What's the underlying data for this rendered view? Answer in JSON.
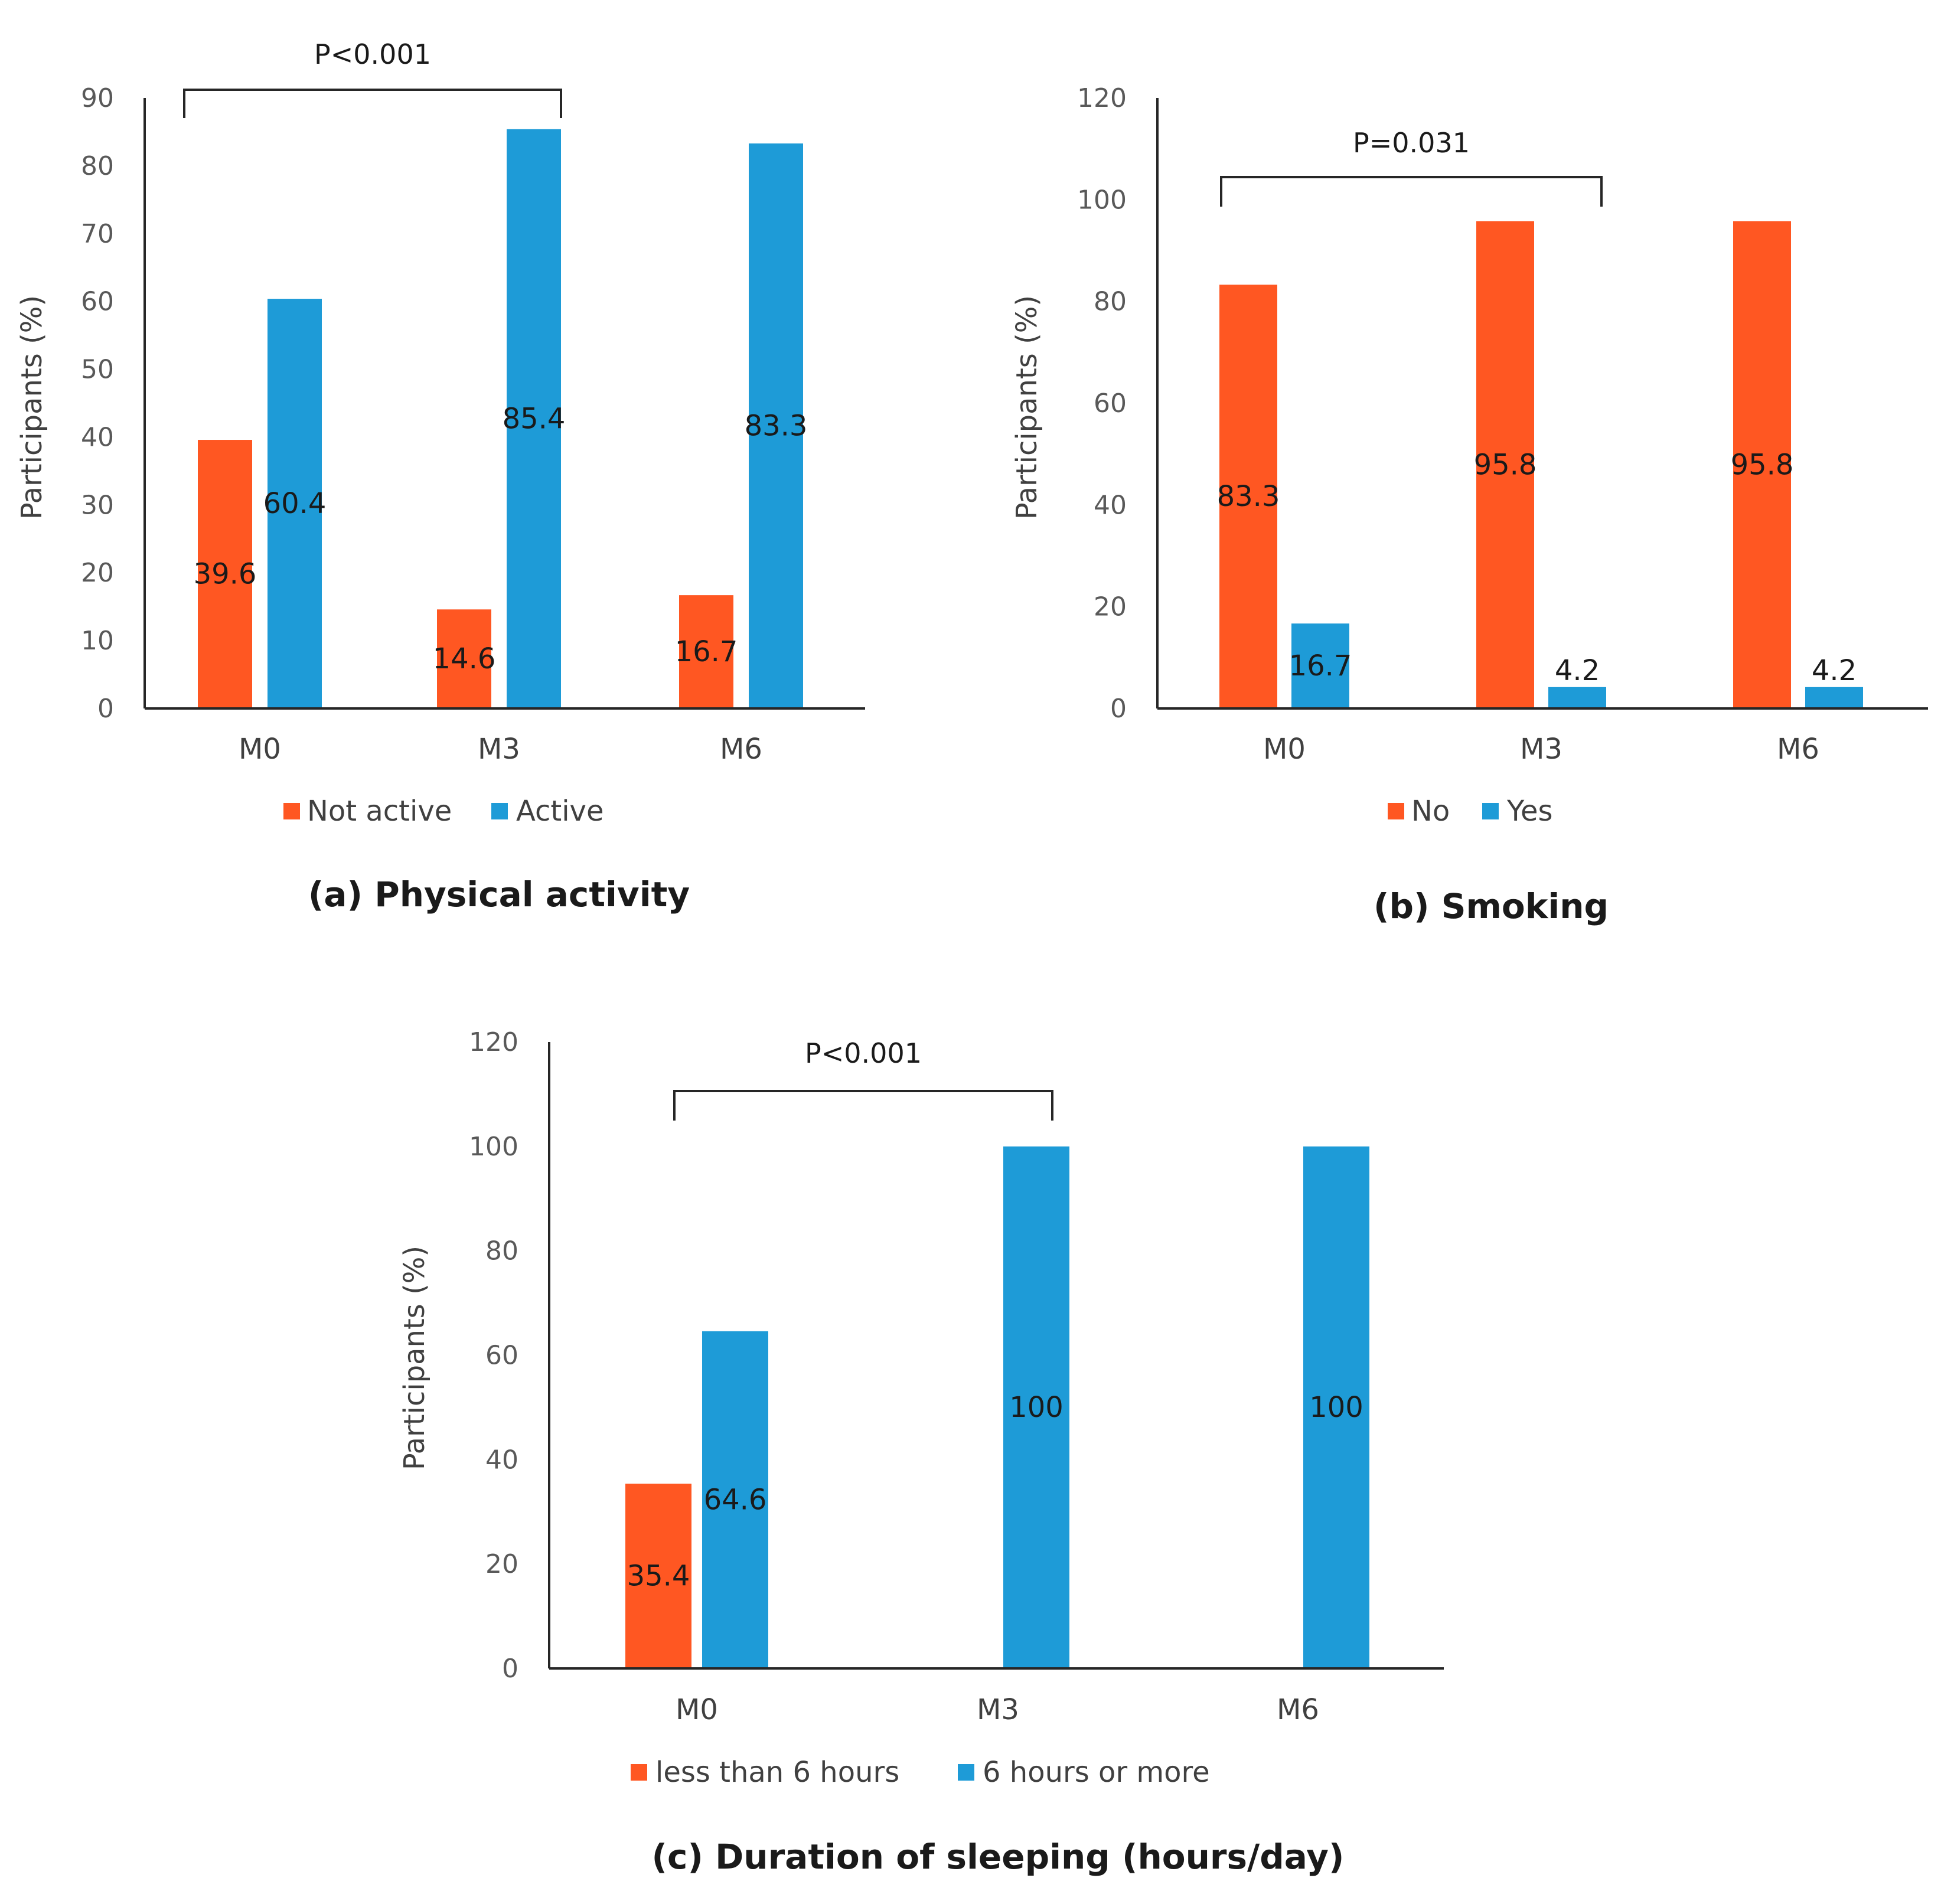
{
  "colors": {
    "series1": "#ff5722",
    "series2": "#1e9bd7"
  },
  "chart_data": [
    {
      "type": "bar",
      "title": "(a) Physical activity",
      "ylabel": "Participants (%)",
      "xlabel": "",
      "ylim": [
        0,
        90
      ],
      "yticks": [
        0,
        10,
        20,
        30,
        40,
        50,
        60,
        70,
        80,
        90
      ],
      "categories": [
        "M0",
        "M3",
        "M6"
      ],
      "series": [
        {
          "name": "Not active",
          "values": [
            39.6,
            14.6,
            16.7
          ],
          "labels": [
            "39.6",
            "14.6",
            "16.7"
          ]
        },
        {
          "name": "Active",
          "values": [
            60.4,
            85.4,
            83.3
          ],
          "labels": [
            "60.4",
            "85.4",
            "83.3"
          ]
        }
      ],
      "annotation": {
        "text": "P<0.001",
        "from": "M0",
        "to": "M3"
      },
      "legend": "bottom"
    },
    {
      "type": "bar",
      "title": "(b) Smoking",
      "ylabel": "Participants (%)",
      "xlabel": "",
      "ylim": [
        0,
        120
      ],
      "yticks": [
        0,
        20,
        40,
        60,
        80,
        100,
        120
      ],
      "categories": [
        "M0",
        "M3",
        "M6"
      ],
      "series": [
        {
          "name": "No",
          "values": [
            83.3,
            95.8,
            95.8
          ],
          "labels": [
            "83.3",
            "95.8",
            "95.8"
          ]
        },
        {
          "name": "Yes",
          "values": [
            16.7,
            4.2,
            4.2
          ],
          "labels": [
            "16.7",
            "4.2",
            "4.2"
          ]
        }
      ],
      "annotation": {
        "text": "P=0.031",
        "from": "M0",
        "to": "M3"
      },
      "legend": "bottom"
    },
    {
      "type": "bar",
      "title": "(c) Duration of sleeping (hours/day)",
      "ylabel": "Participants (%)",
      "xlabel": "",
      "ylim": [
        0,
        120
      ],
      "yticks": [
        0,
        20,
        40,
        60,
        80,
        100,
        120
      ],
      "categories": [
        "M0",
        "M3",
        "M6"
      ],
      "series": [
        {
          "name": "less than 6 hours",
          "values": [
            35.4,
            0,
            0
          ],
          "labels": [
            "35.4",
            null,
            null
          ]
        },
        {
          "name": "6 hours or more",
          "values": [
            64.6,
            100,
            100
          ],
          "labels": [
            "64.6",
            "100",
            "100"
          ]
        }
      ],
      "annotation": {
        "text": "P<0.001",
        "from": "M0",
        "to": "M3"
      },
      "legend": "bottom"
    }
  ]
}
